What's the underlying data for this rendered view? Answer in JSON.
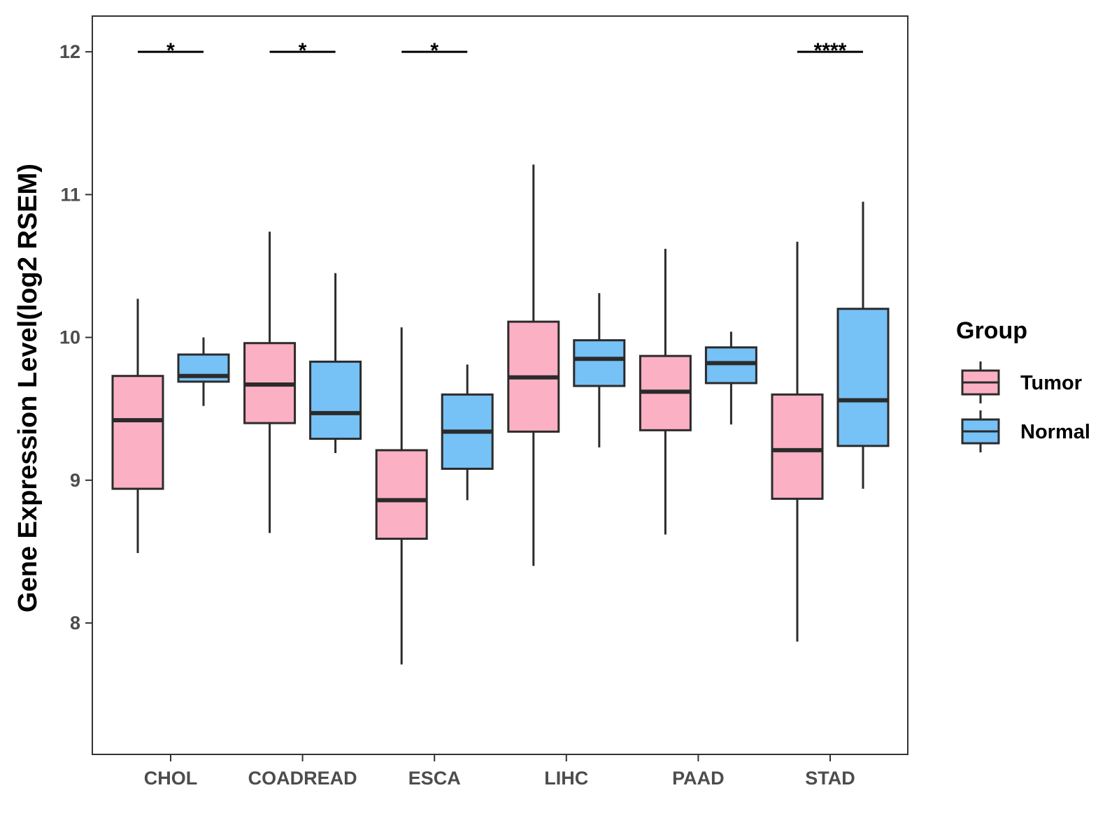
{
  "chart_data": {
    "type": "boxplot",
    "title": "",
    "xlabel": "",
    "ylabel": "Gene Expression Level(log2 RSEM)",
    "ylim": [
      7.08,
      12.25
    ],
    "yticks": [
      8,
      9,
      10,
      11,
      12
    ],
    "grid": false,
    "categories": [
      "CHOL",
      "COADREAD",
      "ESCA",
      "LIHC",
      "PAAD",
      "STAD"
    ],
    "legend": {
      "title": "Group",
      "position": "right"
    },
    "series": [
      {
        "name": "Tumor",
        "color": "#fbb0c3",
        "boxes": [
          {
            "whisker_low": 8.49,
            "q1": 8.94,
            "median": 9.42,
            "q3": 9.73,
            "whisker_high": 10.27
          },
          {
            "whisker_low": 8.63,
            "q1": 9.4,
            "median": 9.67,
            "q3": 9.96,
            "whisker_high": 10.74
          },
          {
            "whisker_low": 7.71,
            "q1": 8.59,
            "median": 8.86,
            "q3": 9.21,
            "whisker_high": 10.07
          },
          {
            "whisker_low": 8.4,
            "q1": 9.34,
            "median": 9.72,
            "q3": 10.11,
            "whisker_high": 11.21
          },
          {
            "whisker_low": 8.62,
            "q1": 9.35,
            "median": 9.62,
            "q3": 9.87,
            "whisker_high": 10.62
          },
          {
            "whisker_low": 7.87,
            "q1": 8.87,
            "median": 9.21,
            "q3": 9.6,
            "whisker_high": 10.67
          }
        ]
      },
      {
        "name": "Normal",
        "color": "#76c1f5",
        "boxes": [
          {
            "whisker_low": 9.52,
            "q1": 9.69,
            "median": 9.73,
            "q3": 9.88,
            "whisker_high": 10.0
          },
          {
            "whisker_low": 9.19,
            "q1": 9.29,
            "median": 9.47,
            "q3": 9.83,
            "whisker_high": 10.45
          },
          {
            "whisker_low": 8.86,
            "q1": 9.08,
            "median": 9.34,
            "q3": 9.6,
            "whisker_high": 9.81
          },
          {
            "whisker_low": 9.23,
            "q1": 9.66,
            "median": 9.85,
            "q3": 9.98,
            "whisker_high": 10.31
          },
          {
            "whisker_low": 9.39,
            "q1": 9.68,
            "median": 9.82,
            "q3": 9.93,
            "whisker_high": 10.04
          },
          {
            "whisker_low": 8.94,
            "q1": 9.24,
            "median": 9.56,
            "q3": 10.2,
            "whisker_high": 10.95
          }
        ]
      }
    ],
    "significance": [
      {
        "category": "CHOL",
        "label": "*",
        "y": 12.0
      },
      {
        "category": "COADREAD",
        "label": "*",
        "y": 12.0
      },
      {
        "category": "ESCA",
        "label": "*",
        "y": 12.0
      },
      {
        "category": "STAD",
        "label": "****",
        "y": 12.0
      }
    ]
  }
}
